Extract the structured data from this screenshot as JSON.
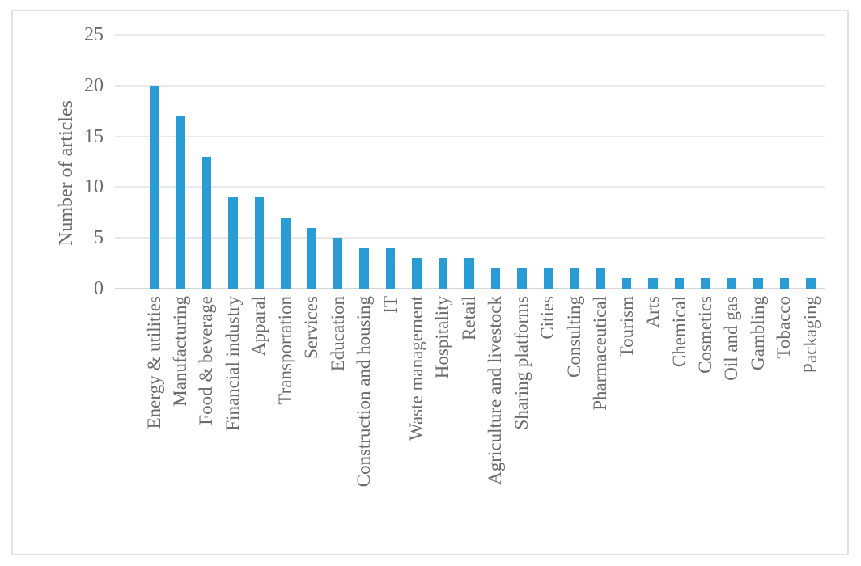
{
  "chart_data": {
    "type": "bar",
    "title": "",
    "xlabel": "",
    "ylabel": "Number of articles",
    "ylim": [
      0,
      25
    ],
    "yticks": [
      0,
      5,
      10,
      15,
      20,
      25
    ],
    "grid": "horizontal",
    "legend": "none",
    "categories": [
      "Energy & utilities",
      "Manufacturing",
      "Food & beverage",
      "Financial industry",
      "Apparal",
      "Transportation",
      "Services",
      "Education",
      "Construction and housing",
      "IT",
      "Waste management",
      "Hospitality",
      "Retail",
      "Agriculture and livestock",
      "Sharing platforms",
      "Cities",
      "Consulting",
      "Pharmaceutical",
      "Tourism",
      "Arts",
      "Chemical",
      "Cosmetics",
      "Oil and gas",
      "Gambling",
      "Tobacco",
      "Packaging"
    ],
    "values": [
      20,
      17,
      13,
      9,
      9,
      7,
      6,
      5,
      4,
      4,
      3,
      3,
      3,
      2,
      2,
      2,
      2,
      2,
      1,
      1,
      1,
      1,
      1,
      1,
      1,
      1
    ]
  },
  "colors": {
    "bar": "#299CD6",
    "text": "#6B6B6B",
    "gridline": "#E9E9E9",
    "axis_line": "#D6D6D6",
    "frame_border": "#E2E2E2",
    "background": "#FFFFFF"
  }
}
